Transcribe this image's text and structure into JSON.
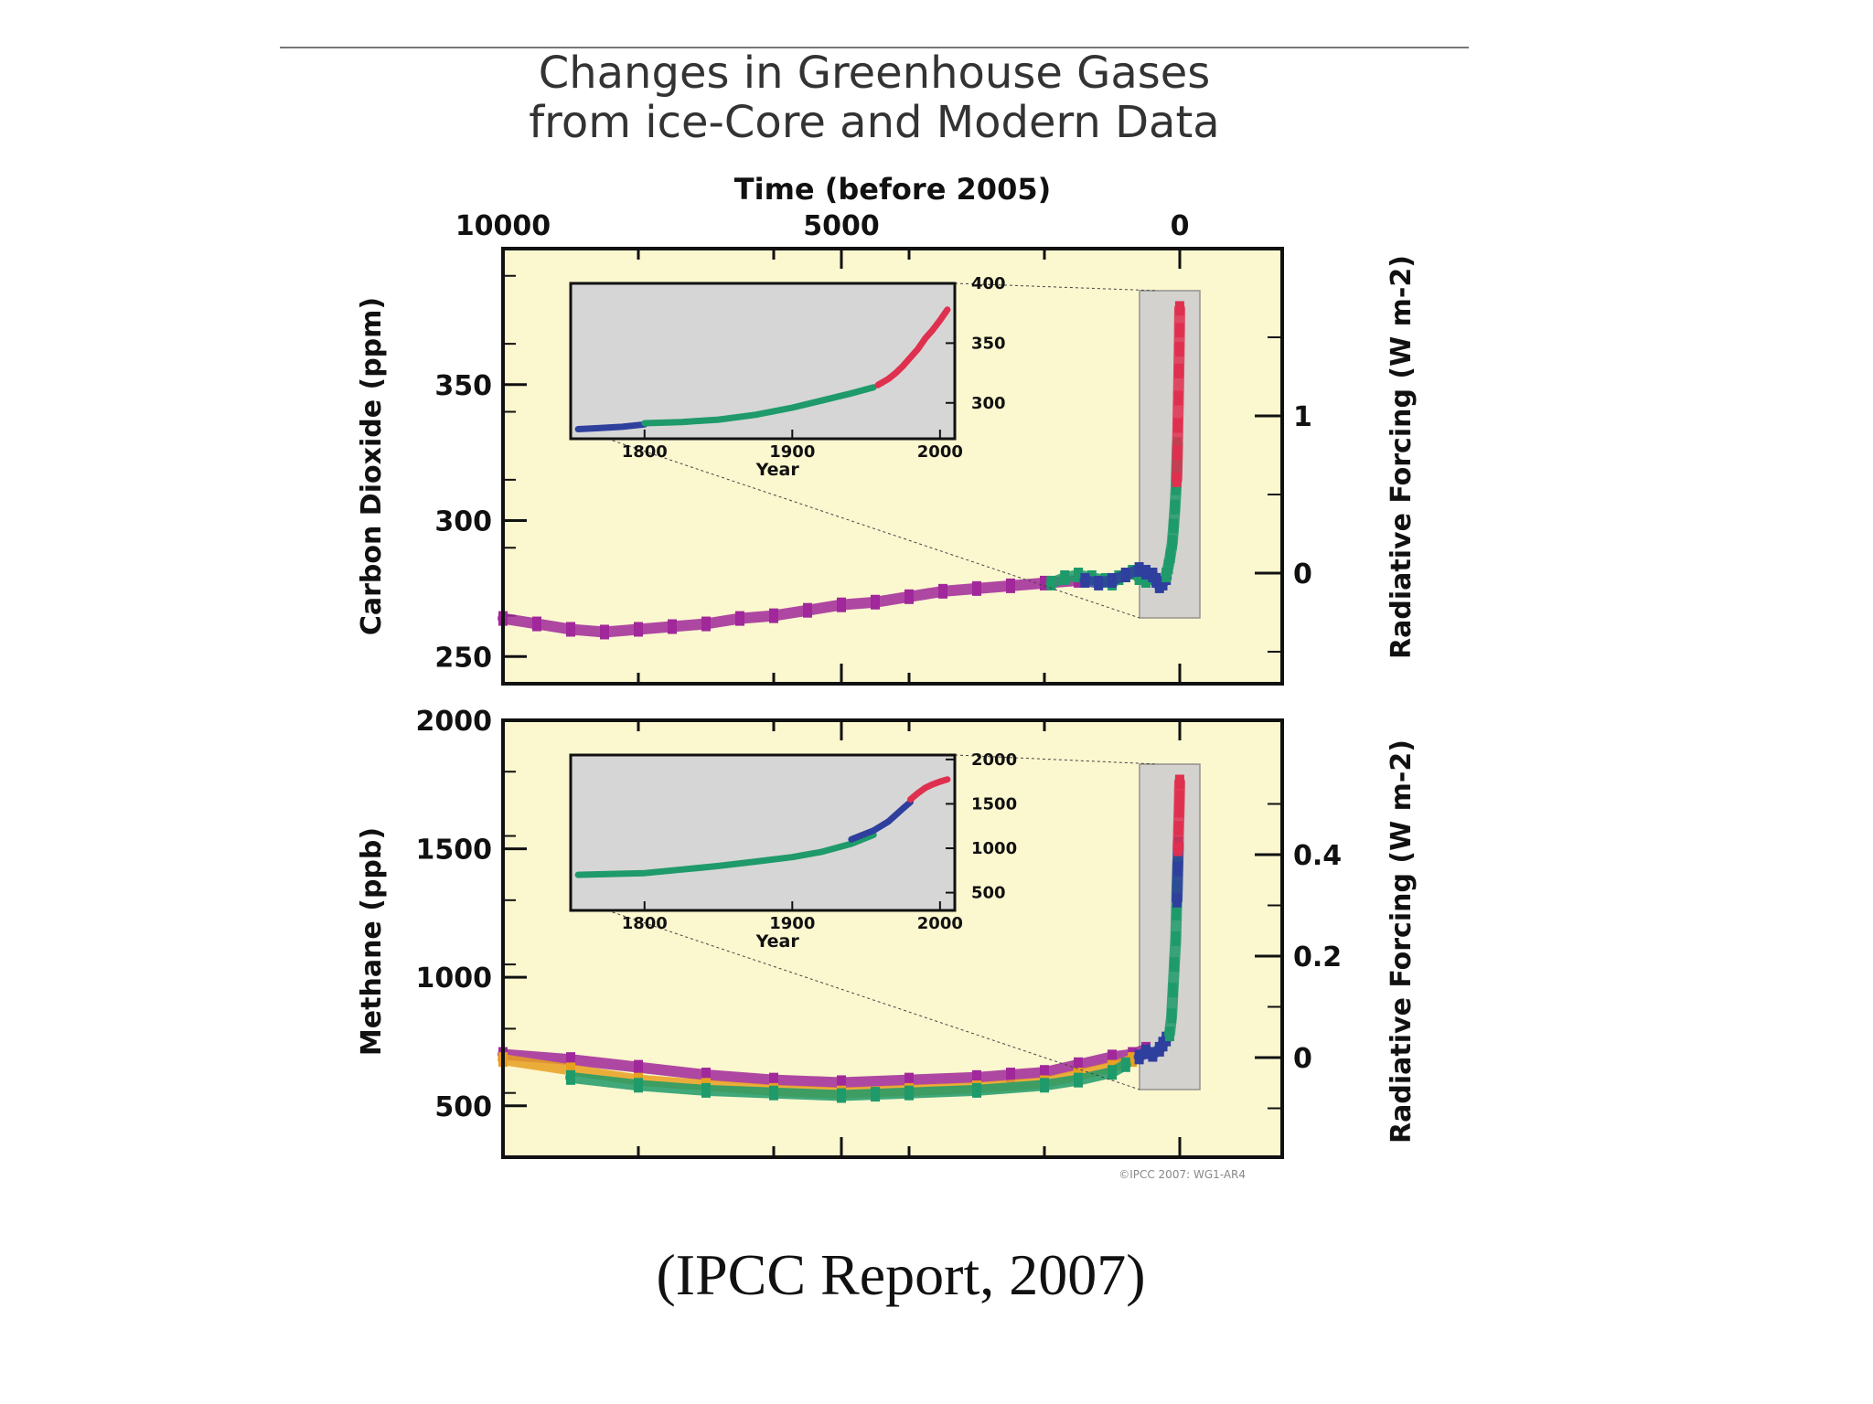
{
  "title_lines": [
    "Changes in Greenhouse Gases",
    "from ice-Core and Modern Data"
  ],
  "caption": "(IPCC Report, 2007)",
  "credit": "©IPCC 2007: WG1-AR4",
  "colors": {
    "panel_bg": "#fbf7cf",
    "inset_bg": "#d6d6d6",
    "frame": "#111111",
    "purple": "#a0289a",
    "blue": "#2f3f9e",
    "green": "#1f9a6a",
    "red": "#e0304f",
    "orange": "#e8a020"
  },
  "chart_data": [
    {
      "type": "scatter",
      "panel": "carbon-dioxide",
      "top_axis": {
        "label": "Time (before 2005)",
        "ticks": [
          "10000",
          "5000",
          "0"
        ],
        "tick_values": [
          10000,
          5000,
          0
        ]
      },
      "x_reversed": true,
      "xlim": [
        10000,
        -300
      ],
      "ylabel": "Carbon Dioxide (ppm)",
      "ylim": [
        240,
        400
      ],
      "yticks": [
        250,
        300,
        350
      ],
      "right_axis": {
        "label": "Radiative Forcing (W m-2)",
        "ticks": [
          "1",
          "0"
        ],
        "tick_values": [
          1,
          0
        ]
      },
      "series": [
        {
          "color": "purple",
          "x": [
            10000,
            9500,
            9000,
            8500,
            8000,
            7500,
            7000,
            6500,
            6000,
            5500,
            5000,
            4500,
            4000,
            3500,
            3000,
            2500,
            2000,
            1500
          ],
          "y": [
            264,
            262,
            260,
            259,
            260,
            261,
            262,
            264,
            265,
            267,
            269,
            270,
            272,
            274,
            275,
            276,
            277,
            278
          ]
        },
        {
          "color": "green",
          "x": [
            1900,
            1700,
            1500,
            1300,
            1100,
            1000,
            900,
            800,
            700,
            600,
            500,
            400
          ],
          "y": [
            277,
            279,
            280,
            279,
            278,
            277,
            279,
            280,
            281,
            279,
            278,
            279
          ]
        },
        {
          "color": "blue",
          "x": [
            1400,
            1200,
            1000,
            800,
            600,
            500,
            400,
            350,
            300,
            250,
            200
          ],
          "y": [
            278,
            277,
            278,
            280,
            282,
            281,
            280,
            278,
            276,
            277,
            279
          ]
        },
        {
          "color": "green",
          "x": [
            200,
            170,
            140,
            110,
            90,
            70,
            55,
            45,
            35
          ],
          "y": [
            280,
            283,
            287,
            292,
            298,
            305,
            312,
            320,
            328
          ]
        },
        {
          "color": "red",
          "x": [
            45,
            35,
            28,
            20,
            14,
            8,
            4,
            1
          ],
          "y": [
            315,
            325,
            335,
            345,
            355,
            363,
            370,
            378
          ]
        }
      ],
      "inset": {
        "xlabel": "Year",
        "xticks": [
          "1800",
          "1900",
          "2000"
        ],
        "xlim": [
          1750,
          2010
        ],
        "yticks": [
          "400",
          "350",
          "300"
        ],
        "ylim": [
          270,
          400
        ],
        "series": [
          {
            "color": "blue",
            "x": [
              1755,
              1770,
              1785,
              1800
            ],
            "y": [
              278,
              279,
              280,
              282
            ]
          },
          {
            "color": "green",
            "x": [
              1800,
              1825,
              1850,
              1875,
              1900,
              1920,
              1940,
              1955
            ],
            "y": [
              283,
              284,
              286,
              290,
              296,
              302,
              308,
              313
            ]
          },
          {
            "color": "red",
            "x": [
              1958,
              1965,
              1970,
              1975,
              1980,
              1985,
              1990,
              1995,
              2000,
              2005
            ],
            "y": [
              315,
              320,
              325,
              331,
              338,
              345,
              354,
              361,
              369,
              378
            ]
          }
        ]
      }
    },
    {
      "type": "scatter",
      "panel": "methane",
      "x_reversed": true,
      "xlim": [
        10000,
        -300
      ],
      "ylabel": "Methane (ppb)",
      "ylim": [
        300,
        2000
      ],
      "yticks": [
        500,
        1000,
        1500,
        2000
      ],
      "right_axis": {
        "label": "Radiative Forcing (W m-2)",
        "ticks": [
          "0.4",
          "0.2",
          "0"
        ],
        "tick_values": [
          0.4,
          0.2,
          0
        ]
      },
      "series": [
        {
          "color": "purple",
          "x": [
            10000,
            9000,
            8000,
            7000,
            6000,
            5000,
            4000,
            3000,
            2500,
            2000,
            1500,
            1000,
            700,
            500
          ],
          "y": [
            700,
            680,
            650,
            620,
            600,
            590,
            600,
            610,
            620,
            630,
            660,
            690,
            700,
            720
          ]
        },
        {
          "color": "orange",
          "x": [
            10000,
            9000,
            8000,
            7000,
            6000,
            5000,
            4000,
            3000,
            2000,
            1500,
            1000,
            700
          ],
          "y": [
            680,
            640,
            600,
            580,
            560,
            550,
            560,
            570,
            590,
            620,
            650,
            680
          ]
        },
        {
          "color": "green",
          "x": [
            9000,
            8000,
            7000,
            6000,
            5000,
            4500,
            4000,
            3000,
            2000,
            1500,
            1000,
            800
          ],
          "y": [
            610,
            580,
            560,
            550,
            540,
            545,
            550,
            560,
            580,
            600,
            630,
            660
          ]
        },
        {
          "color": "blue",
          "x": [
            600,
            500,
            400,
            300,
            250,
            200
          ],
          "y": [
            690,
            710,
            700,
            720,
            740,
            760
          ]
        },
        {
          "color": "green",
          "x": [
            150,
            120,
            100,
            80,
            60,
            50,
            40,
            30
          ],
          "y": [
            780,
            850,
            950,
            1050,
            1150,
            1250,
            1350,
            1450
          ]
        },
        {
          "color": "blue",
          "x": [
            40,
            30,
            20
          ],
          "y": [
            1300,
            1420,
            1520
          ]
        },
        {
          "color": "red",
          "x": [
            25,
            18,
            10,
            5,
            1
          ],
          "y": [
            1500,
            1580,
            1650,
            1700,
            1760
          ]
        }
      ],
      "inset": {
        "xlabel": "Year",
        "xticks": [
          "1800",
          "1900",
          "2000"
        ],
        "xlim": [
          1750,
          2010
        ],
        "yticks": [
          "2000",
          "1500",
          "1000",
          "500"
        ],
        "ylim": [
          300,
          2050
        ],
        "series": [
          {
            "color": "green",
            "x": [
              1755,
              1775,
              1800,
              1825,
              1850,
              1875,
              1900,
              1920,
              1940,
              1955
            ],
            "y": [
              700,
              710,
              720,
              760,
              800,
              850,
              900,
              960,
              1050,
              1150
            ]
          },
          {
            "color": "blue",
            "x": [
              1940,
              1955,
              1965,
              1975,
              1980
            ],
            "y": [
              1100,
              1200,
              1300,
              1450,
              1520
            ]
          },
          {
            "color": "red",
            "x": [
              1980,
              1985,
              1990,
              1995,
              2000,
              2005
            ],
            "y": [
              1550,
              1620,
              1680,
              1720,
              1750,
              1775
            ]
          }
        ]
      }
    }
  ]
}
